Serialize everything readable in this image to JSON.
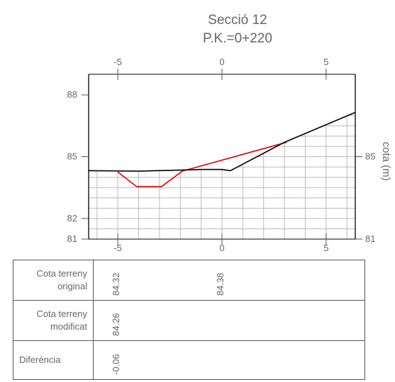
{
  "chart_data": {
    "type": "line",
    "title": "Secció 12",
    "subtitle": "P.K.=0+220",
    "ylabel": "cota (m)",
    "xlim": [
      -6.4,
      6.4
    ],
    "ylim": [
      81,
      89
    ],
    "x_ticks": [
      -5,
      0,
      5
    ],
    "y_ticks_left": [
      81,
      82,
      85,
      88
    ],
    "y_ticks_right": [
      81,
      85
    ],
    "grid": true,
    "series": [
      {
        "color": "#000000",
        "points": [
          [
            -6.4,
            84.32
          ],
          [
            -4.0,
            84.3
          ],
          [
            -2.0,
            84.35
          ],
          [
            -1.0,
            84.38
          ],
          [
            0.0,
            84.38
          ],
          [
            0.4,
            84.32
          ],
          [
            3.0,
            85.7
          ],
          [
            6.4,
            87.15
          ]
        ]
      },
      {
        "color": "#dd0000",
        "points": [
          [
            -5.0,
            84.26
          ],
          [
            -4.1,
            83.55
          ],
          [
            -2.9,
            83.55
          ],
          [
            -1.9,
            84.3
          ],
          [
            3.1,
            85.7
          ]
        ]
      }
    ]
  },
  "table": {
    "rows": [
      {
        "label_line1": "Cota terreny",
        "label_line2": "original",
        "values": [
          {
            "x": -5,
            "text": "84.32"
          },
          {
            "x": 0,
            "text": "84.38"
          }
        ]
      },
      {
        "label_line1": "Cota terreny",
        "label_line2": "modificat",
        "values": [
          {
            "x": -5,
            "text": "84.26"
          }
        ]
      },
      {
        "label_line1": "Diferència",
        "label_line2": "",
        "values": [
          {
            "x": -5,
            "text": "-0.06"
          }
        ]
      }
    ]
  }
}
